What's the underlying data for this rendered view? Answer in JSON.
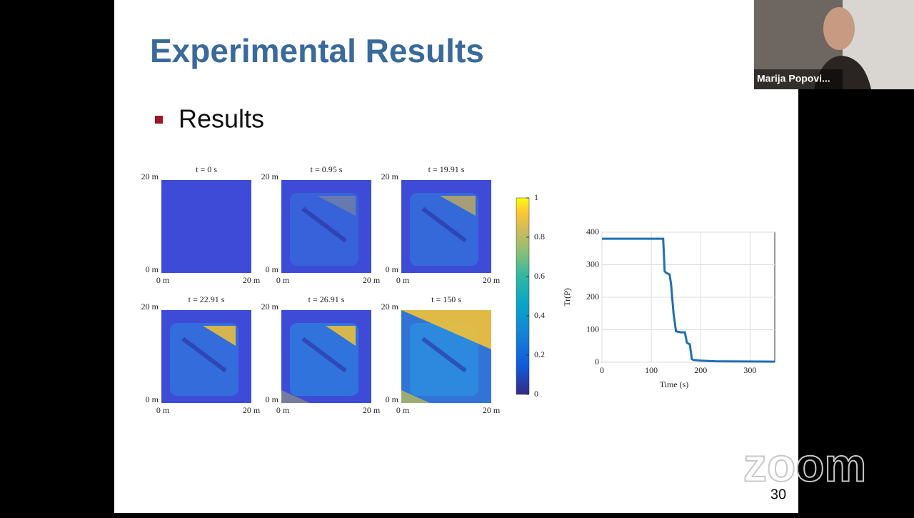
{
  "slide": {
    "title": "Experimental Results",
    "bullet": "Results",
    "page_number": "30"
  },
  "heatmaps": [
    {
      "title": "t = 0 s",
      "y_top": "20 m",
      "y_bottom": "0 m",
      "x_left": "0 m",
      "x_right": "20 m"
    },
    {
      "title": "t = 0.95 s",
      "y_top": "20 m",
      "y_bottom": "0 m",
      "x_left": "0 m",
      "x_right": "20 m"
    },
    {
      "title": "t = 19.91 s",
      "y_top": "20 m",
      "y_bottom": "0 m",
      "x_left": "0 m",
      "x_right": "20 m"
    },
    {
      "title": "t = 22.91 s",
      "y_top": "20 m",
      "y_bottom": "0 m",
      "x_left": "0 m",
      "x_right": "20 m"
    },
    {
      "title": "t = 26.91 s",
      "y_top": "20 m",
      "y_bottom": "0 m",
      "x_left": "0 m",
      "x_right": "20 m"
    },
    {
      "title": "t = 150 s",
      "y_top": "20 m",
      "y_bottom": "0 m",
      "x_left": "0 m",
      "x_right": "20 m"
    }
  ],
  "colorbar": {
    "lim": [
      0,
      1
    ],
    "ticks": [
      0,
      0.2,
      0.4,
      0.6,
      0.8,
      1
    ]
  },
  "plot": {
    "type": "line",
    "ylabel": "Tr(P)",
    "xlabel": "Time (s)",
    "xlim": [
      0,
      350
    ],
    "ylim": [
      0,
      400
    ],
    "xticks": [
      0,
      100,
      200,
      300
    ],
    "yticks": [
      0,
      100,
      200,
      300,
      400
    ],
    "grid": true,
    "color": "#1f6fb4",
    "x": [
      0,
      124,
      127,
      130,
      137,
      140,
      145,
      150,
      160,
      168,
      172,
      178,
      182,
      185,
      200,
      230,
      350
    ],
    "values": [
      380,
      380,
      280,
      275,
      270,
      240,
      150,
      95,
      92,
      92,
      60,
      55,
      10,
      7,
      5,
      3,
      2
    ]
  },
  "participant": {
    "name": "Marija Popovi..."
  },
  "watermark": "zoom"
}
